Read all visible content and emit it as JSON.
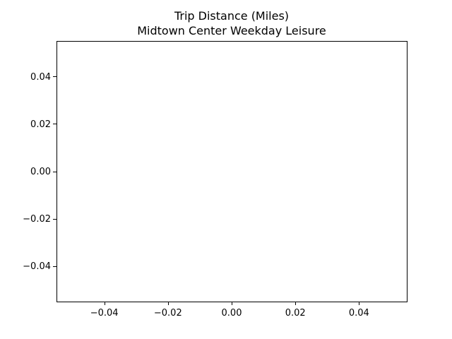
{
  "chart_data": {
    "type": "line",
    "title": "Trip Distance (Miles)",
    "subtitle": "Midtown Center Weekday Leisure",
    "xlabel": "",
    "ylabel": "",
    "xlim": [
      -0.055,
      0.055
    ],
    "ylim": [
      -0.055,
      0.055
    ],
    "x_ticks": [
      -0.04,
      -0.02,
      0.0,
      0.02,
      0.04
    ],
    "x_tick_labels": [
      "−0.04",
      "−0.02",
      "0.00",
      "0.02",
      "0.04"
    ],
    "y_ticks": [
      -0.04,
      -0.02,
      0.0,
      0.02,
      0.04
    ],
    "y_tick_labels": [
      "−0.04",
      "−0.02",
      "0.00",
      "0.02",
      "0.04"
    ],
    "grid": false,
    "series": []
  },
  "colors": {
    "background": "#ffffff",
    "axes": "#000000",
    "text": "#000000"
  }
}
